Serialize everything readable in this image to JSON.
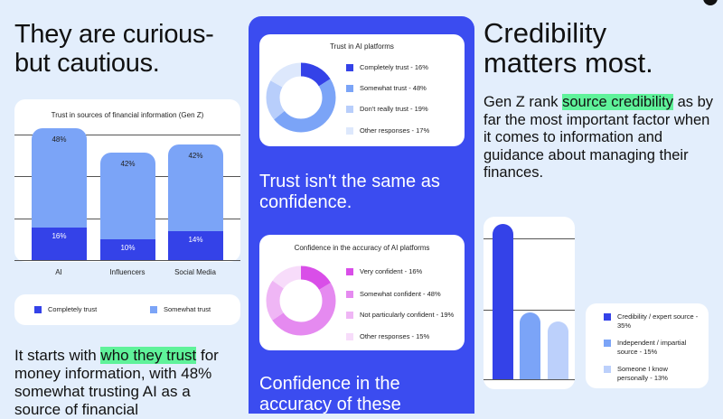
{
  "left": {
    "heading_line1": "They are curious-",
    "heading_line2": "but cautious.",
    "body_pre": "It starts with ",
    "body_highlight": "who they trust",
    "body_post": " for money information, with 48% somewhat trusting AI as a source of financial"
  },
  "middle": {
    "text1": "Trust isn't the same as confidence.",
    "text2": "Confidence in the accuracy of these"
  },
  "right": {
    "heading_line1": "Credibility",
    "heading_line2": "matters most.",
    "body_pre": "Gen Z rank ",
    "body_highlight": "source credibility",
    "body_post": " as by far the most important factor when it comes to information and guidance about managing their finances."
  },
  "colors": {
    "accent": "#3b4cf0",
    "highlight": "#5ff29a",
    "background": "#e3eefc"
  },
  "chart_data": [
    {
      "type": "bar",
      "stacked": true,
      "title": "Trust in sources of financial information (Gen Z)",
      "categories": [
        "AI",
        "Influencers",
        "Social Media"
      ],
      "series": [
        {
          "name": "Completely trust",
          "values": [
            16,
            10,
            14
          ],
          "labels": [
            "16%",
            "10%",
            "14%"
          ],
          "color": "#3442e8"
        },
        {
          "name": "Somewhat trust",
          "values": [
            48,
            42,
            42
          ],
          "labels": [
            "48%",
            "42%",
            "42%"
          ],
          "color": "#7ba4f7"
        }
      ],
      "grid": true,
      "legend": "bottom"
    },
    {
      "type": "pie",
      "donut": true,
      "title": "Trust in AI platforms",
      "slices": [
        {
          "label": "Completely trust - 16%",
          "value": 16,
          "color": "#3442e8"
        },
        {
          "label": "Somewhat trust - 48%",
          "value": 48,
          "color": "#7ba4f7"
        },
        {
          "label": "Don't really trust - 19%",
          "value": 19,
          "color": "#b8cefb"
        },
        {
          "label": "Other responses - 17%",
          "value": 17,
          "color": "#dde8fc"
        }
      ],
      "legend": "right"
    },
    {
      "type": "pie",
      "donut": true,
      "title": "Confidence in the accuracy of AI platforms",
      "slices": [
        {
          "label": "Very confident - 16%",
          "value": 16,
          "color": "#d94ee8"
        },
        {
          "label": "Somewhat confident - 48%",
          "value": 48,
          "color": "#e58af0"
        },
        {
          "label": "Not particularly confident - 19%",
          "value": 19,
          "color": "#efb6f5"
        },
        {
          "label": "Other responses - 15%",
          "value": 15,
          "color": "#f7dcfa"
        }
      ],
      "legend": "right"
    },
    {
      "type": "bar",
      "categories": [
        "Credibility / expert source - 35%",
        "Independent / impartial source - 15%",
        "Someone I know personally - 13%"
      ],
      "values": [
        35,
        15,
        13
      ],
      "colors": [
        "#3442e8",
        "#7ba4f7",
        "#bcd0fb"
      ],
      "grid": true,
      "legend": "right"
    }
  ]
}
